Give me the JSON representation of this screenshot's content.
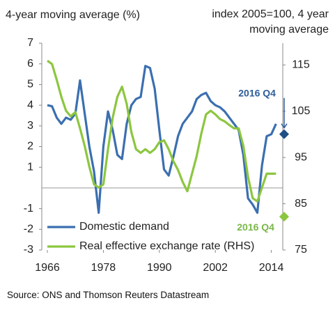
{
  "chart_data": {
    "type": "line",
    "ylabel": "4-year moving average (%)",
    "y2label": "index 2005=100, 4 year moving average",
    "source": "Source: ONS and Thomson Reuters Datastream",
    "x": [
      1966,
      1967,
      1968,
      1969,
      1970,
      1971,
      1972,
      1973,
      1974,
      1975,
      1976,
      1977,
      1978,
      1979,
      1980,
      1981,
      1982,
      1983,
      1984,
      1985,
      1986,
      1987,
      1988,
      1989,
      1990,
      1991,
      1992,
      1993,
      1994,
      1995,
      1996,
      1997,
      1998,
      1999,
      2000,
      2001,
      2002,
      2003,
      2004,
      2005,
      2006,
      2007,
      2008,
      2009,
      2010,
      2011,
      2012,
      2013,
      2014,
      2015
    ],
    "xlim": [
      1966,
      2017.5
    ],
    "xticks": [
      1966,
      1978,
      1990,
      2002,
      2014
    ],
    "ylim": [
      -3,
      7
    ],
    "yticks": [
      7,
      6,
      5,
      4,
      3,
      2,
      1,
      -1,
      -2,
      -3
    ],
    "y2lim": [
      75,
      119.7
    ],
    "y2ticks": [
      115,
      105,
      95,
      85,
      75
    ],
    "series": [
      {
        "name": "Domestic demand",
        "color": "#3b6fb0",
        "values": [
          4.0,
          3.95,
          3.4,
          3.1,
          3.4,
          3.3,
          3.6,
          5.2,
          3.6,
          2.0,
          0.8,
          -1.2,
          2.0,
          3.7,
          2.8,
          1.6,
          1.4,
          3.1,
          4.0,
          4.3,
          4.4,
          5.9,
          5.8,
          4.8,
          2.8,
          0.9,
          0.6,
          1.5,
          2.5,
          3.1,
          3.4,
          3.7,
          4.3,
          4.5,
          4.6,
          4.2,
          4.0,
          3.9,
          3.7,
          3.4,
          3.1,
          2.8,
          1.6,
          -0.5,
          -0.8,
          -1.2,
          1.1,
          2.5,
          2.6,
          3.1
        ]
      },
      {
        "name": "Real effective exchange rate (RHS)",
        "color": "#8cc63f",
        "axis": "y2",
        "values": [
          115.9,
          115.2,
          111.8,
          108.1,
          105.1,
          103.9,
          104.8,
          101.3,
          97.5,
          93.0,
          89.2,
          88.5,
          89.2,
          96.8,
          103.6,
          108.1,
          110.3,
          106.6,
          100.5,
          96.8,
          96.0,
          96.8,
          96.0,
          96.8,
          98.3,
          98.7,
          96.8,
          94.2,
          92.3,
          89.7,
          87.7,
          91.5,
          95.3,
          100.2,
          104.3,
          105.1,
          104.3,
          103.3,
          102.8,
          102.0,
          101.3,
          101.3,
          97.5,
          90.8,
          86.2,
          85.5,
          88.5,
          91.5,
          91.5,
          91.5
        ]
      }
    ],
    "markers": [
      {
        "x": 2016.75,
        "y": 2.6,
        "color": "#1f4f85",
        "label": "2016 Q4"
      },
      {
        "x": 2016.75,
        "y": 82.2,
        "axis": "y2",
        "color": "#8cc63f",
        "label": "2016 Q4"
      }
    ],
    "legend": "lower-left"
  }
}
